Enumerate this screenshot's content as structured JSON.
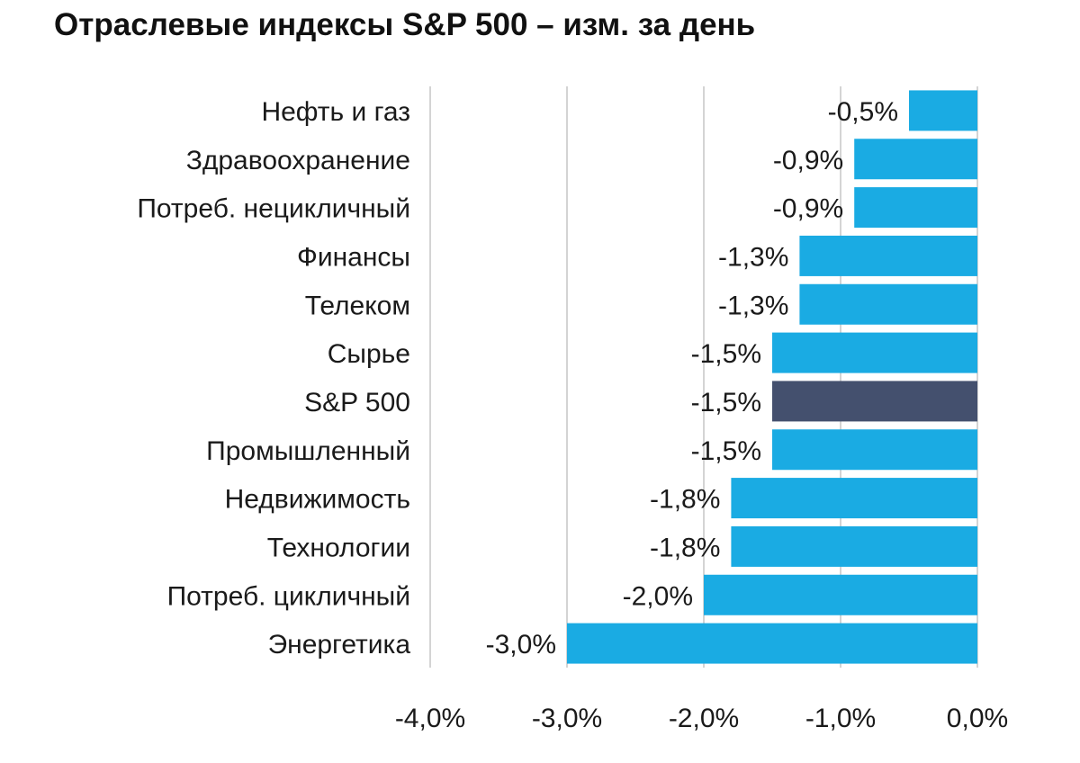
{
  "chart_data": {
    "type": "bar",
    "orientation": "horizontal",
    "title": "Отраслевые индексы S&P 500 – изм. за день",
    "categories": [
      "Нефть и газ",
      "Здравоохранение",
      "Потреб. нецикличный",
      "Финансы",
      "Телеком",
      "Сырье",
      "S&P 500",
      "Промышленный",
      "Недвижимость",
      "Технологии",
      "Потреб. цикличный",
      "Энергетика"
    ],
    "values": [
      -0.5,
      -0.9,
      -0.9,
      -1.3,
      -1.3,
      -1.5,
      -1.5,
      -1.5,
      -1.8,
      -1.8,
      -2.0,
      -3.0
    ],
    "data_labels": [
      "-0,5%",
      "-0,9%",
      "-0,9%",
      "-1,3%",
      "-1,3%",
      "-1,5%",
      "-1,5%",
      "-1,5%",
      "-1,8%",
      "-1,8%",
      "-2,0%",
      "-3,0%"
    ],
    "highlight_category": "S&P 500",
    "xlim": [
      -4.0,
      0.0
    ],
    "x_ticks": [
      -4.0,
      -3.0,
      -2.0,
      -1.0,
      0.0
    ],
    "x_tick_labels": [
      "-4,0%",
      "-3,0%",
      "-2,0%",
      "-1,0%",
      "0,0%"
    ],
    "xlabel": "",
    "ylabel": "",
    "grid": "vertical",
    "legend": "none",
    "colors": {
      "bar": "#1aabe3",
      "highlight": "#44506e",
      "grid": "#d4d4d4"
    }
  }
}
